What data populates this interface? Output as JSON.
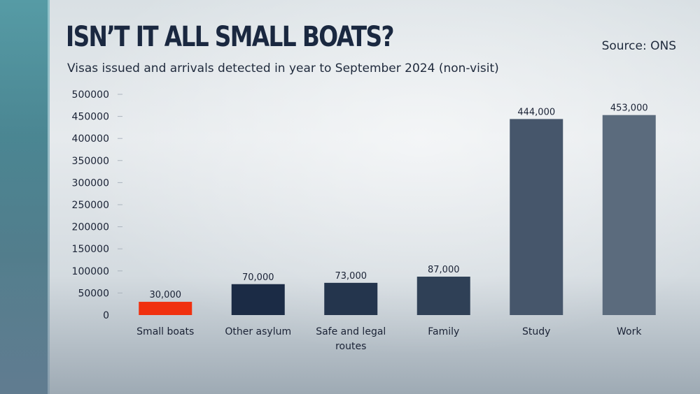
{
  "header": {
    "title": "ISN’T IT ALL SMALL BOATS?",
    "subtitle": "Visas issued and arrivals detected in year to September 2024 (non-visit)",
    "source": "Source: ONS"
  },
  "chart_data": {
    "type": "bar",
    "categories": [
      "Small boats",
      "Other asylum",
      "Safe and legal routes",
      "Family",
      "Study",
      "Work"
    ],
    "category_lines": [
      [
        "Small boats"
      ],
      [
        "Other asylum"
      ],
      [
        "Safe and legal",
        "routes"
      ],
      [
        "Family"
      ],
      [
        "Study"
      ],
      [
        "Work"
      ]
    ],
    "values": [
      30000,
      70000,
      73000,
      87000,
      444000,
      453000
    ],
    "value_labels": [
      "30,000",
      "70,000",
      "73,000",
      "87,000",
      "444,000",
      "453,000"
    ],
    "bar_colors": [
      "#f0300f",
      "#1b2b45",
      "#24354d",
      "#2f4056",
      "#46566b",
      "#5b6b7d"
    ],
    "ylim": [
      0,
      500000
    ],
    "yticks": [
      "0",
      "50000",
      "100000",
      "150000",
      "200000",
      "250000",
      "300000",
      "350000",
      "400000",
      "450000",
      "500000"
    ],
    "title": "ISN’T IT ALL SMALL BOATS?",
    "xlabel": "",
    "ylabel": "",
    "grid": false,
    "legend": "none"
  }
}
